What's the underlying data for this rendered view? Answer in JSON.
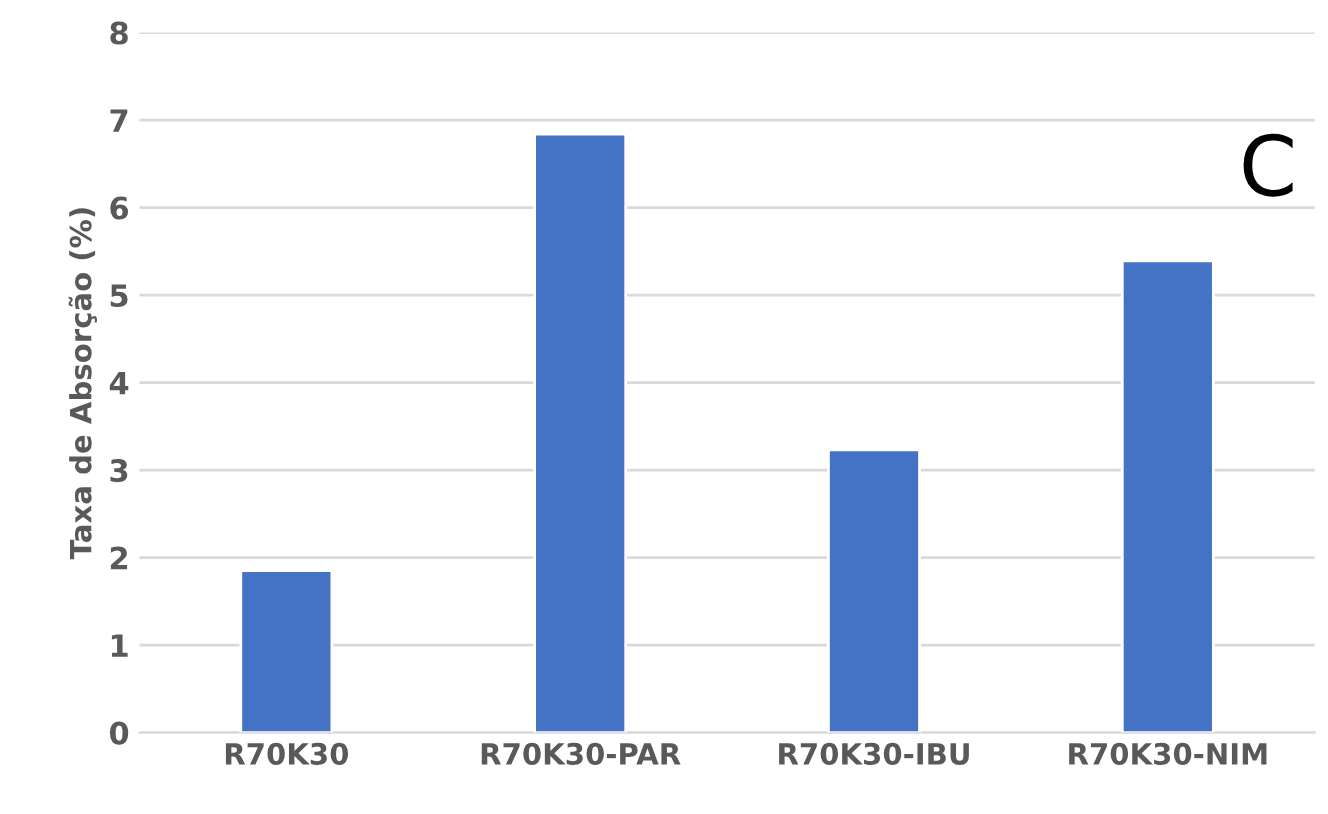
{
  "chart_data": {
    "type": "bar",
    "ylabel": "Taxa de Absorção (%)",
    "categories": [
      "R70K30",
      "R70K30-PAR",
      "R70K30-IBU",
      "R70K30-NIM"
    ],
    "values": [
      1.85,
      6.84,
      3.23,
      5.39
    ],
    "color": "#4472c4",
    "ylim": [
      0,
      8
    ],
    "yticks": [
      0,
      1,
      2,
      3,
      4,
      5,
      6,
      7,
      8
    ],
    "grid": "y",
    "annotations": [
      "C"
    ]
  }
}
